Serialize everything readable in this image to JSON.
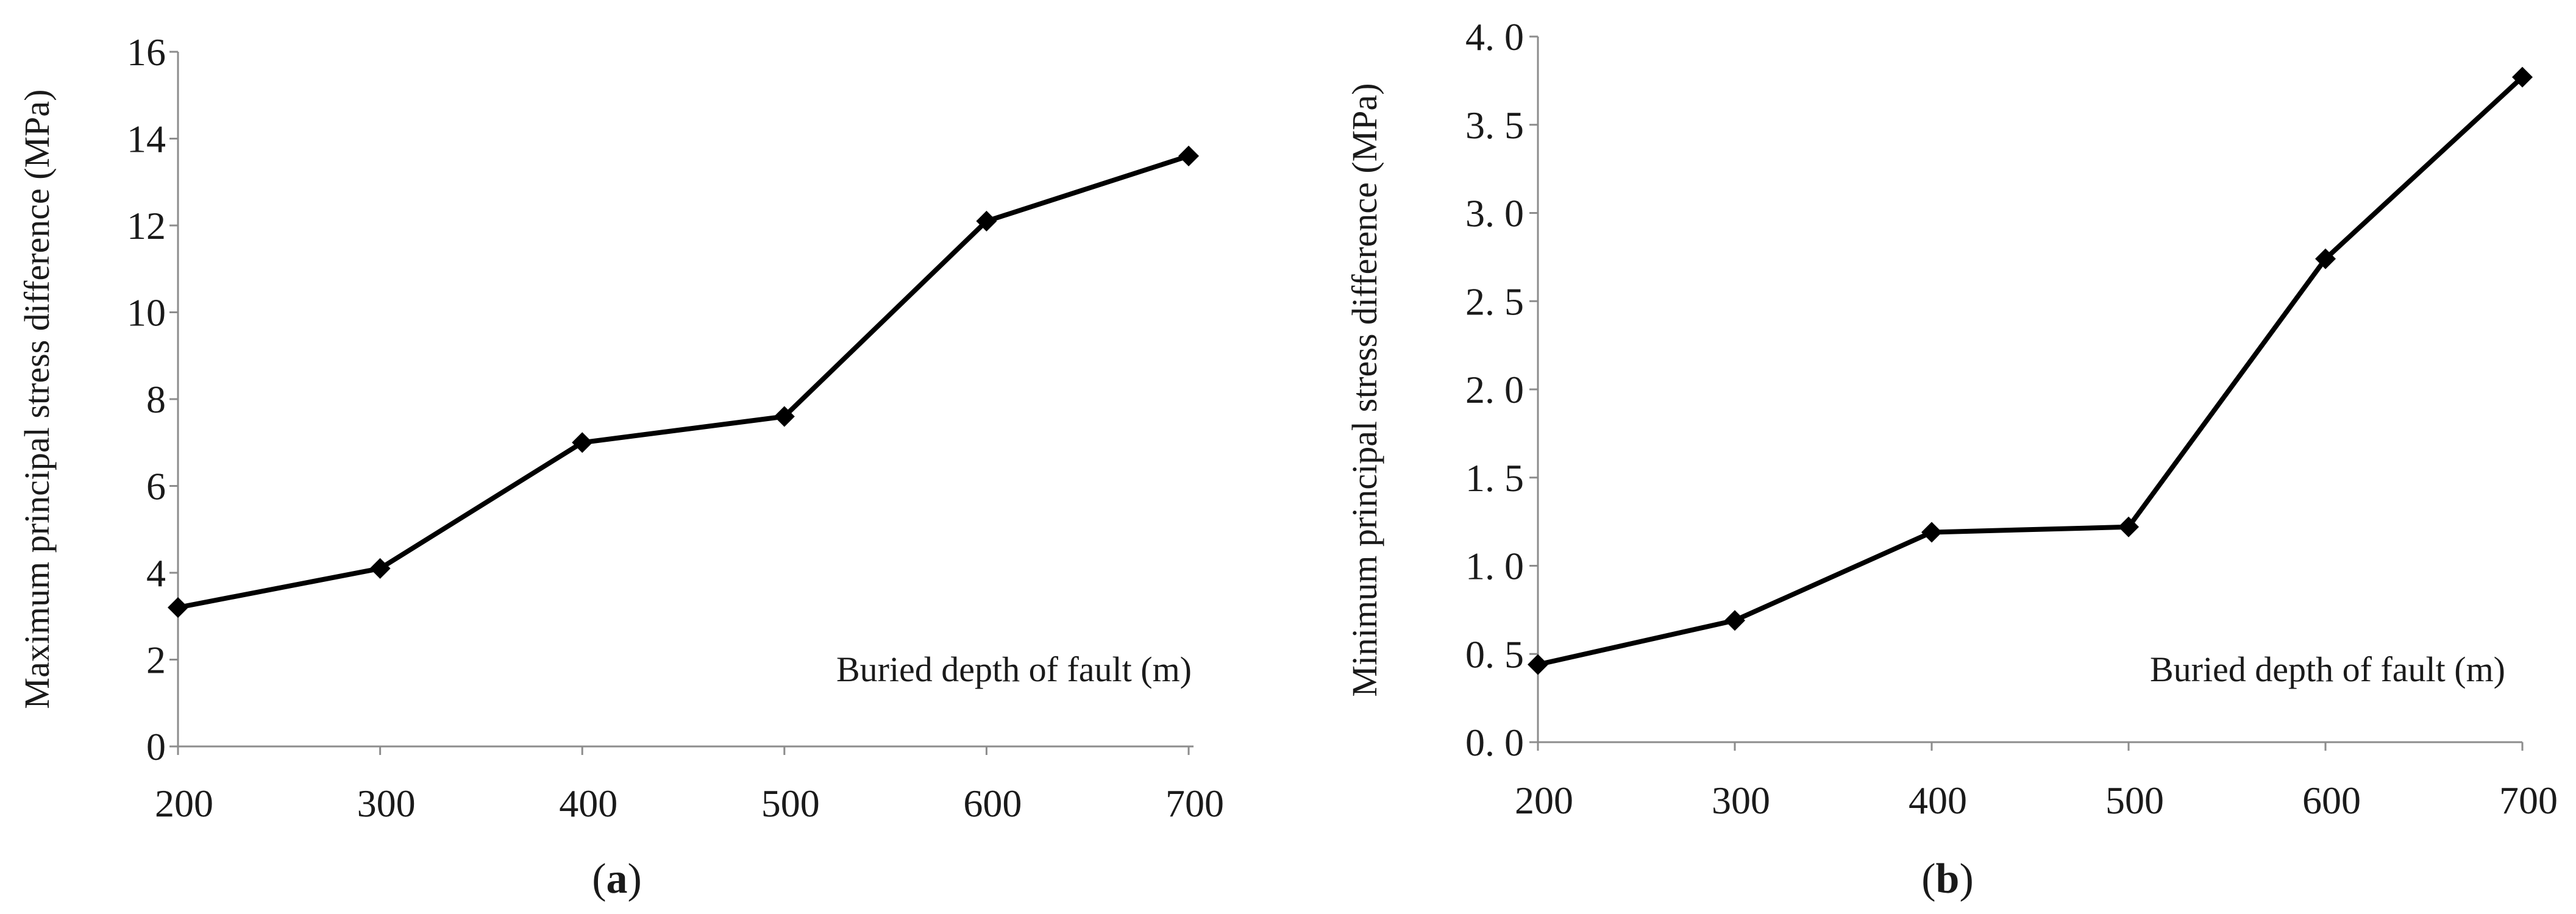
{
  "chart_data": [
    {
      "type": "line",
      "panel_label": {
        "open": "(",
        "letter": "a",
        "close": ")"
      },
      "x": [
        200,
        300,
        400,
        500,
        600,
        700
      ],
      "xticks": [
        "200",
        "300",
        "400",
        "500",
        "600",
        "700"
      ],
      "series": [
        {
          "name": "Maximum principal stress difference",
          "values": [
            3.2,
            4.1,
            7.0,
            7.6,
            12.1,
            13.6
          ]
        }
      ],
      "ylim": [
        0,
        16
      ],
      "yticks": [
        "0",
        "2",
        "4",
        "6",
        "8",
        "10",
        "12",
        "14",
        "16"
      ],
      "ylabel": "Maximum principal stress difference (MPa)",
      "xlabel": "Buried depth of fault (m)",
      "color": "#000000",
      "marker": "diamond"
    },
    {
      "type": "line",
      "panel_label": {
        "open": "(",
        "letter": "b",
        "close": ")"
      },
      "x": [
        200,
        300,
        400,
        500,
        600,
        700
      ],
      "xticks": [
        "200",
        "300",
        "400",
        "500",
        "600",
        "700"
      ],
      "series": [
        {
          "name": "Minimum principal stress difference",
          "values": [
            0.44,
            0.69,
            1.19,
            1.22,
            2.74,
            3.77
          ]
        }
      ],
      "ylim": [
        0,
        4
      ],
      "yticks": [
        "0. 0",
        "0. 5",
        "1. 0",
        "1. 5",
        "2. 0",
        "2. 5",
        "3. 0",
        "3. 5",
        "4. 0"
      ],
      "ylabel": "Minimum principal stress difference (MPa)",
      "xlabel": "Buried depth of fault (m)",
      "color": "#000000",
      "marker": "diamond"
    }
  ]
}
